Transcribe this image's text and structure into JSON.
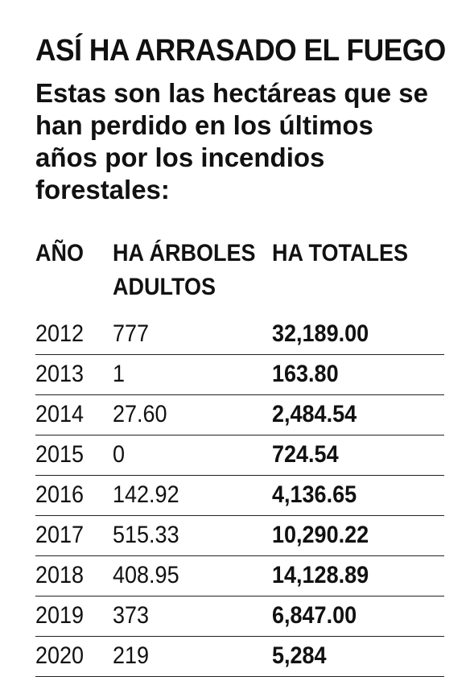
{
  "title": "ASÍ HA ARRASADO EL FUEGO",
  "subtitle": "Estas son las hectáreas que se han perdido en los últimos años por los incendios forestales:",
  "table": {
    "headers": [
      "AÑO",
      "HA ÁRBOLES ADULTOS",
      "HA TOTALES"
    ],
    "rows": [
      {
        "year": "2012",
        "adult": "777",
        "total": "32,189.00"
      },
      {
        "year": "2013",
        "adult": "1",
        "total": "163.80"
      },
      {
        "year": "2014",
        "adult": "27.60",
        "total": "2,484.54"
      },
      {
        "year": "2015",
        "adult": "0",
        "total": "724.54"
      },
      {
        "year": "2016",
        "adult": "142.92",
        "total": "4,136.65"
      },
      {
        "year": "2017",
        "adult": "515.33",
        "total": "10,290.22"
      },
      {
        "year": "2018",
        "adult": "408.95",
        "total": "14,128.89"
      },
      {
        "year": "2019",
        "adult": "373",
        "total": "6,847.00"
      },
      {
        "year": "2020",
        "adult": "219",
        "total": "5,284"
      }
    ]
  }
}
